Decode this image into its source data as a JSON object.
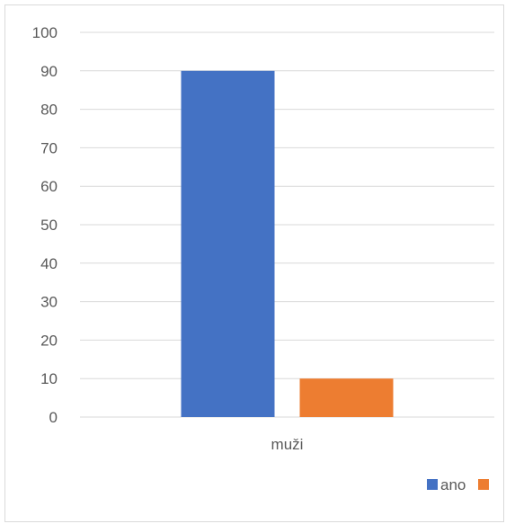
{
  "chart_data": {
    "type": "bar",
    "categories": [
      "muži"
    ],
    "series": [
      {
        "name": "ano",
        "values": [
          90
        ],
        "color": "#4472C4"
      },
      {
        "name": "",
        "values": [
          10
        ],
        "color": "#ED7D31"
      }
    ],
    "ylim": [
      0,
      100
    ],
    "yticks": [
      0,
      10,
      20,
      30,
      40,
      50,
      60,
      70,
      80,
      90,
      100
    ],
    "grid": true,
    "legend_position": "bottom-right",
    "title": "",
    "xlabel": "",
    "ylabel": ""
  }
}
